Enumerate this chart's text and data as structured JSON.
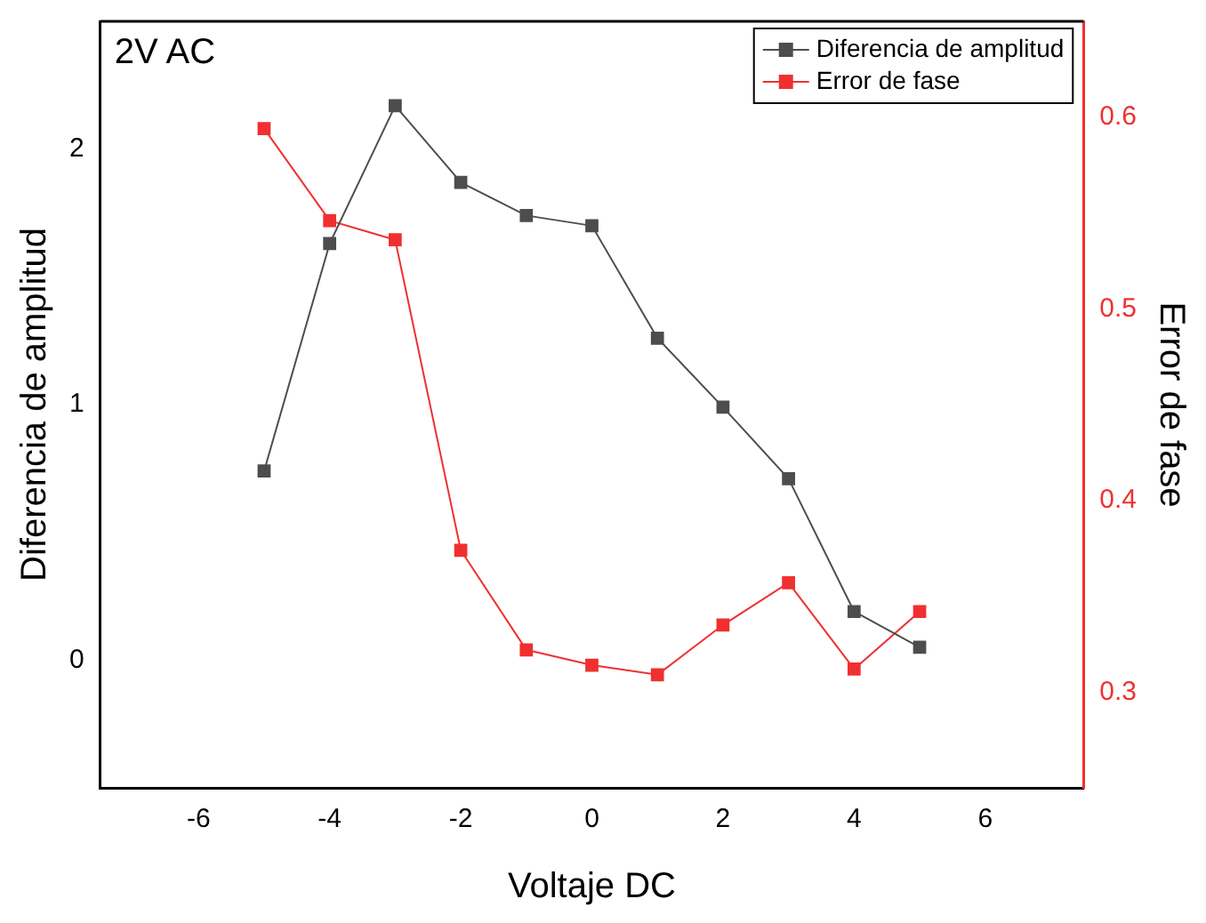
{
  "chart_data": {
    "type": "line",
    "xlabel": "Voltaje DC",
    "ylabel": "Diferencia de amplitud",
    "y2label": "Error de fase",
    "annotations": [
      "2V AC"
    ],
    "x": [
      -5,
      -4,
      -3,
      -2,
      -1,
      0,
      1,
      2,
      3,
      4,
      5
    ],
    "series": [
      {
        "name": "Diferencia de amplitud",
        "color": "#4d4d4d",
        "values": [
          0.74,
          1.63,
          2.17,
          1.87,
          1.74,
          1.7,
          1.26,
          0.99,
          0.71,
          0.19,
          0.05
        ]
      },
      {
        "name": "Error de fase",
        "color": "#f03030",
        "axis": "y2",
        "values": [
          0.594,
          0.546,
          0.536,
          0.374,
          0.322,
          0.314,
          0.309,
          0.335,
          0.357,
          0.312,
          0.342
        ]
      }
    ],
    "xlim": [
      -7.5,
      7.5
    ],
    "xticks": [
      -6,
      -4,
      -2,
      0,
      2,
      4,
      6
    ],
    "ylim": [
      -0.5,
      2.5
    ],
    "yticks": [
      0,
      1,
      2
    ],
    "y2lim": [
      0.25,
      0.65
    ],
    "y2ticks": [
      0.3,
      0.4,
      0.5,
      0.6
    ],
    "grid": false,
    "legend": "top right",
    "marker": "square",
    "line_style": "solid"
  }
}
